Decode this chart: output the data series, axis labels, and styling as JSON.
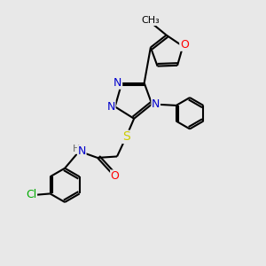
{
  "bg_color": "#e8e8e8",
  "bond_color": "#000000",
  "bond_width": 1.5,
  "atom_colors": {
    "N": "#0000cc",
    "O": "#ff0000",
    "S": "#cccc00",
    "Cl": "#00aa00",
    "C": "#000000",
    "H": "#666666"
  },
  "font_size": 9
}
